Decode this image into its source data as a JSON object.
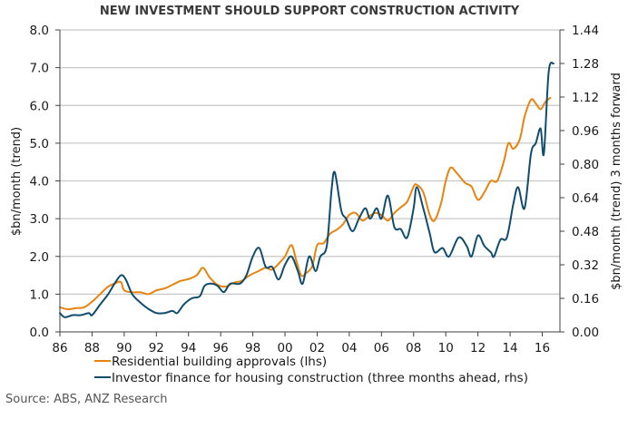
{
  "chart_data": {
    "type": "line",
    "title": "NEW INVESTMENT SHOULD SUPPORT CONSTRUCTION ACTIVITY",
    "xlabel": "",
    "ylabel": "$bn/month (trend)",
    "y2label": "$bn/month (trend) 3 months forward",
    "xlim": [
      1986,
      2017.1
    ],
    "ylim": [
      0,
      8
    ],
    "y2lim": [
      0,
      1.44
    ],
    "grid": true,
    "legend_position": "bottom",
    "x_ticks": [
      1986,
      1988,
      1990,
      1992,
      1994,
      1996,
      1998,
      2000,
      2002,
      2004,
      2006,
      2008,
      2010,
      2012,
      2014,
      2016
    ],
    "x_tick_labels": [
      "86",
      "88",
      "90",
      "92",
      "94",
      "96",
      "98",
      "00",
      "02",
      "04",
      "06",
      "08",
      "10",
      "12",
      "14",
      "16"
    ],
    "y_ticks": [
      0,
      1,
      2,
      3,
      4,
      5,
      6,
      7,
      8
    ],
    "y_tick_labels": [
      "0.0",
      "1.0",
      "2.0",
      "3.0",
      "4.0",
      "5.0",
      "6.0",
      "7.0",
      "8.0"
    ],
    "y2_ticks": [
      0,
      0.16,
      0.32,
      0.48,
      0.64,
      0.8,
      0.96,
      1.12,
      1.28,
      1.44
    ],
    "y2_tick_labels": [
      "0.00",
      "0.16",
      "0.32",
      "0.48",
      "0.64",
      "0.80",
      "0.96",
      "1.12",
      "1.28",
      "1.44"
    ],
    "series": [
      {
        "name": "Residential building approvals (lhs)",
        "axis": "left",
        "color": "#E8830E",
        "x": [
          1986.0,
          1986.5,
          1987.0,
          1987.5,
          1988.0,
          1988.5,
          1989.0,
          1989.5,
          1989.8,
          1990.0,
          1990.5,
          1991.0,
          1991.5,
          1992.0,
          1992.5,
          1993.0,
          1993.5,
          1994.0,
          1994.5,
          1994.9,
          1995.3,
          1995.8,
          1996.3,
          1996.8,
          1997.3,
          1997.8,
          1998.3,
          1998.8,
          1999.2,
          1999.7,
          2000.0,
          2000.4,
          2000.7,
          2001.0,
          2001.3,
          2001.7,
          2002.0,
          2002.4,
          2002.8,
          2003.2,
          2003.6,
          2004.0,
          2004.4,
          2004.8,
          2005.2,
          2005.6,
          2006.0,
          2006.4,
          2006.8,
          2007.2,
          2007.6,
          2008.0,
          2008.2,
          2008.6,
          2009.0,
          2009.3,
          2009.7,
          2010.0,
          2010.3,
          2010.7,
          2011.2,
          2011.6,
          2012.0,
          2012.4,
          2012.8,
          2013.2,
          2013.6,
          2013.9,
          2014.2,
          2014.6,
          2014.9,
          2015.3,
          2015.6,
          2015.9,
          2016.2,
          2016.5
        ],
        "values": [
          0.65,
          0.6,
          0.63,
          0.65,
          0.8,
          1.0,
          1.2,
          1.3,
          1.32,
          1.1,
          1.05,
          1.05,
          1.0,
          1.1,
          1.15,
          1.25,
          1.35,
          1.4,
          1.5,
          1.7,
          1.45,
          1.25,
          1.2,
          1.3,
          1.35,
          1.5,
          1.6,
          1.7,
          1.65,
          1.85,
          2.0,
          2.3,
          1.9,
          1.5,
          1.55,
          1.75,
          2.3,
          2.35,
          2.6,
          2.7,
          2.85,
          3.1,
          3.15,
          2.95,
          3.05,
          3.15,
          3.1,
          2.95,
          3.15,
          3.3,
          3.45,
          3.85,
          3.9,
          3.7,
          3.1,
          2.95,
          3.4,
          4.0,
          4.35,
          4.2,
          3.95,
          3.85,
          3.5,
          3.7,
          4.0,
          4.0,
          4.5,
          5.0,
          4.85,
          5.1,
          5.7,
          6.15,
          6.05,
          5.9,
          6.1,
          6.2
        ]
      },
      {
        "name": "Investor finance for housing construction (three months ahead, rhs)",
        "axis": "right",
        "color": "#0F4C6E",
        "x": [
          1986.0,
          1986.3,
          1986.8,
          1987.3,
          1987.8,
          1988.0,
          1988.5,
          1989.0,
          1989.4,
          1989.8,
          1990.1,
          1990.5,
          1991.0,
          1991.5,
          1992.0,
          1992.5,
          1993.0,
          1993.3,
          1993.7,
          1994.2,
          1994.7,
          1995.0,
          1995.4,
          1995.8,
          1996.2,
          1996.6,
          1997.2,
          1997.6,
          1998.0,
          1998.4,
          1998.8,
          1999.2,
          1999.6,
          2000.0,
          2000.4,
          2000.8,
          2001.1,
          2001.5,
          2001.9,
          2002.2,
          2002.6,
          2002.9,
          2003.1,
          2003.5,
          2003.8,
          2004.2,
          2004.6,
          2005.0,
          2005.3,
          2005.7,
          2006.0,
          2006.4,
          2006.8,
          2007.2,
          2007.6,
          2008.0,
          2008.2,
          2008.6,
          2009.0,
          2009.3,
          2009.8,
          2010.2,
          2010.8,
          2011.3,
          2011.6,
          2012.0,
          2012.4,
          2012.8,
          2013.0,
          2013.4,
          2013.8,
          2014.2,
          2014.5,
          2014.9,
          2015.3,
          2015.6,
          2015.9,
          2016.1,
          2016.4,
          2016.7
        ],
        "values": [
          0.09,
          0.07,
          0.08,
          0.08,
          0.09,
          0.08,
          0.13,
          0.18,
          0.23,
          0.27,
          0.25,
          0.18,
          0.14,
          0.11,
          0.09,
          0.09,
          0.1,
          0.09,
          0.13,
          0.16,
          0.17,
          0.22,
          0.23,
          0.22,
          0.19,
          0.23,
          0.23,
          0.27,
          0.36,
          0.4,
          0.31,
          0.31,
          0.25,
          0.32,
          0.36,
          0.29,
          0.23,
          0.36,
          0.29,
          0.36,
          0.41,
          0.68,
          0.76,
          0.58,
          0.54,
          0.48,
          0.54,
          0.59,
          0.54,
          0.59,
          0.54,
          0.65,
          0.5,
          0.49,
          0.45,
          0.59,
          0.69,
          0.59,
          0.47,
          0.38,
          0.4,
          0.36,
          0.45,
          0.41,
          0.36,
          0.46,
          0.41,
          0.38,
          0.36,
          0.44,
          0.45,
          0.61,
          0.69,
          0.59,
          0.85,
          0.9,
          0.97,
          0.85,
          1.24,
          1.28
        ]
      }
    ],
    "source": "Source: ABS, ANZ Research"
  }
}
